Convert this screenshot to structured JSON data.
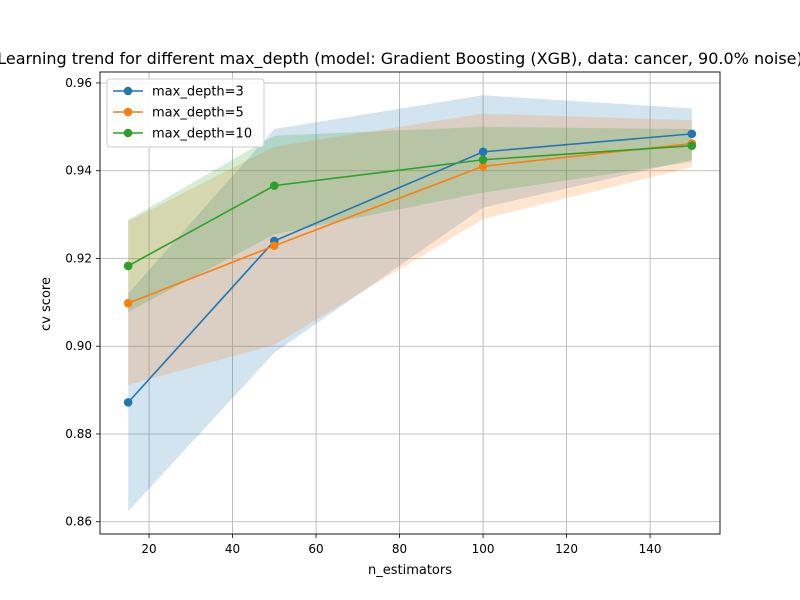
{
  "chart_data": {
    "type": "line",
    "title": "Learning trend for different max_depth (model: Gradient Boosting (XGB), data: cancer, 90.0% noise)",
    "xlabel": "n_estimators",
    "ylabel": "cv score",
    "xlim": [
      8.25,
      156.75
    ],
    "ylim": [
      0.8572,
      0.9625
    ],
    "x_ticks": [
      20,
      40,
      60,
      80,
      100,
      120,
      140
    ],
    "y_ticks": [
      0.86,
      0.88,
      0.9,
      0.92,
      0.94,
      0.96
    ],
    "grid": true,
    "legend_position": "top-left",
    "x": [
      15,
      50,
      100,
      150
    ],
    "series": [
      {
        "name": "max_depth=3",
        "color": "#1f77b4",
        "values": [
          0.8872,
          0.924,
          0.9443,
          0.9484
        ],
        "lower": [
          0.8624,
          0.8985,
          0.9316,
          0.9425
        ],
        "upper": [
          0.912,
          0.9495,
          0.9572,
          0.9542
        ]
      },
      {
        "name": "max_depth=5",
        "color": "#ff7f0e",
        "values": [
          0.9098,
          0.9229,
          0.941,
          0.9462
        ],
        "lower": [
          0.8912,
          0.9003,
          0.929,
          0.9408
        ],
        "upper": [
          0.9285,
          0.9455,
          0.953,
          0.9515
        ]
      },
      {
        "name": "max_depth=10",
        "color": "#2ca02c",
        "values": [
          0.9183,
          0.9366,
          0.9425,
          0.9457
        ],
        "lower": [
          0.9078,
          0.9255,
          0.935,
          0.942
        ],
        "upper": [
          0.9288,
          0.948,
          0.95,
          0.9495
        ]
      }
    ]
  }
}
